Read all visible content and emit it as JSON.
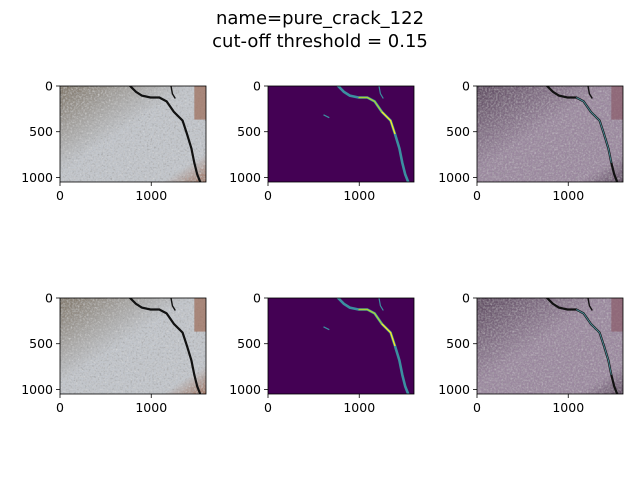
{
  "figure": {
    "title_line1": "name=pure_crack_122",
    "title_line2": "cut-off threshold = 0.15"
  },
  "chart_data": {
    "type": "image-grid",
    "title": "name=pure_crack_122\ncut-off threshold = 0.15",
    "rows": 2,
    "cols": 3,
    "panels": [
      {
        "row": 0,
        "col": 0,
        "kind": "photo",
        "xticks": [
          0,
          1000
        ],
        "yticks": [
          0,
          500,
          1000
        ],
        "xlim": [
          0,
          1600
        ],
        "ylim": [
          1050,
          0
        ]
      },
      {
        "row": 0,
        "col": 1,
        "kind": "mask",
        "xticks": [
          0,
          1000
        ],
        "yticks": [
          0,
          500,
          1000
        ],
        "xlim": [
          0,
          1600
        ],
        "ylim": [
          1050,
          0
        ]
      },
      {
        "row": 0,
        "col": 2,
        "kind": "overlay",
        "xticks": [
          0,
          1000
        ],
        "yticks": [
          0,
          500,
          1000
        ],
        "xlim": [
          0,
          1600
        ],
        "ylim": [
          1050,
          0
        ]
      },
      {
        "row": 1,
        "col": 0,
        "kind": "photo",
        "xticks": [
          0,
          1000
        ],
        "yticks": [
          0,
          500,
          1000
        ],
        "xlim": [
          0,
          1600
        ],
        "ylim": [
          1050,
          0
        ]
      },
      {
        "row": 1,
        "col": 1,
        "kind": "mask",
        "xticks": [
          0,
          1000
        ],
        "yticks": [
          0,
          500,
          1000
        ],
        "xlim": [
          0,
          1600
        ],
        "ylim": [
          1050,
          0
        ]
      },
      {
        "row": 1,
        "col": 2,
        "kind": "overlay",
        "xticks": [
          0,
          1000
        ],
        "yticks": [
          0,
          500,
          1000
        ],
        "xlim": [
          0,
          1600
        ],
        "ylim": [
          1050,
          0
        ]
      }
    ],
    "colors": {
      "photo_light": "#c2c6cc",
      "photo_dark": "#7e7466",
      "photo_rust": "#9c6c58",
      "crack": "#111111",
      "mask_bg": "#440154",
      "mask_mid": "#3b8fa0",
      "mask_hi": "#a6d33a",
      "mask_peak": "#fde725",
      "overlay_light": "#9a879e",
      "overlay_dark": "#5d4a5f"
    }
  }
}
